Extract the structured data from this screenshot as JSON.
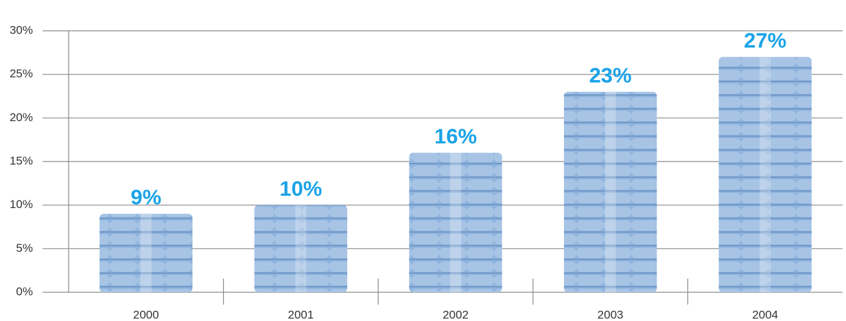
{
  "chart_data": {
    "type": "bar",
    "categories": [
      "2000",
      "2001",
      "2002",
      "2003",
      "2004"
    ],
    "values": [
      9,
      10,
      16,
      23,
      27
    ],
    "value_labels": [
      "9%",
      "10%",
      "16%",
      "23%",
      "27%"
    ],
    "color": "#8fb4de",
    "label_color": "#1aa3e8",
    "ylim": [
      0,
      30
    ],
    "yticks": [
      {
        "value": 0,
        "label": "0%"
      },
      {
        "value": 5,
        "label": "5%"
      },
      {
        "value": 10,
        "label": "10%"
      },
      {
        "value": 15,
        "label": "15%"
      },
      {
        "value": 20,
        "label": "20%"
      },
      {
        "value": 25,
        "label": "25%"
      },
      {
        "value": 30,
        "label": "30%"
      }
    ],
    "grid": true
  }
}
